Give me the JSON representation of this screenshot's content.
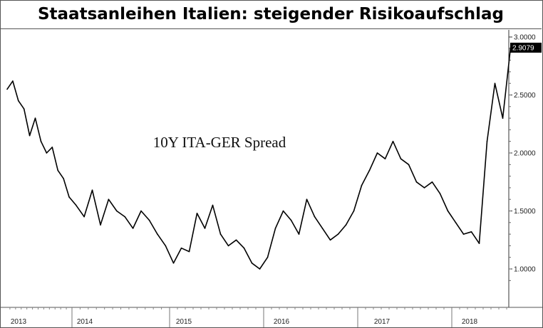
{
  "chart_data": {
    "type": "line",
    "title": "Staatsanleihen Italien: steigender Risikoaufschlag",
    "annotation": "10Y ITA-GER Spread",
    "series": [
      {
        "x": [
          "2013-01",
          "2013-02",
          "2013-03",
          "2013-04",
          "2013-05",
          "2013-06",
          "2013-07",
          "2013-08",
          "2013-09",
          "2013-10",
          "2013-11",
          "2013-12",
          "2014-01",
          "2014-02",
          "2014-03",
          "2014-04",
          "2014-05",
          "2014-06",
          "2014-07",
          "2014-08",
          "2014-09",
          "2014-10",
          "2014-11",
          "2014-12",
          "2015-01",
          "2015-02",
          "2015-03",
          "2015-04",
          "2015-05",
          "2015-06",
          "2015-07",
          "2015-08",
          "2015-09",
          "2015-10",
          "2015-11",
          "2015-12",
          "2016-01",
          "2016-02",
          "2016-03",
          "2016-04",
          "2016-05",
          "2016-06",
          "2016-07",
          "2016-08",
          "2016-09",
          "2016-10",
          "2016-11",
          "2016-12",
          "2017-01",
          "2017-02",
          "2017-03",
          "2017-04",
          "2017-05",
          "2017-06",
          "2017-07",
          "2017-08",
          "2017-09",
          "2017-10",
          "2017-11",
          "2017-12",
          "2018-01",
          "2018-02",
          "2018-03",
          "2018-04",
          "2018-05",
          "2018-06",
          "2018-07",
          "2018-08"
        ],
        "values": [
          2.55,
          2.62,
          2.45,
          2.38,
          2.15,
          2.3,
          2.1,
          2.0,
          2.05,
          1.85,
          1.78,
          1.62,
          1.55,
          1.45,
          1.68,
          1.38,
          1.6,
          1.5,
          1.45,
          1.35,
          1.5,
          1.42,
          1.3,
          1.2,
          1.05,
          1.18,
          1.15,
          1.48,
          1.35,
          1.55,
          1.3,
          1.2,
          1.25,
          1.18,
          1.05,
          1.0,
          1.1,
          1.35,
          1.5,
          1.42,
          1.3,
          1.6,
          1.45,
          1.35,
          1.25,
          1.3,
          1.38,
          1.5,
          1.72,
          1.85,
          2.0,
          1.95,
          2.1,
          1.95,
          1.9,
          1.75,
          1.7,
          1.75,
          1.65,
          1.5,
          1.4,
          1.3,
          1.32,
          1.22,
          2.1,
          2.6,
          2.3,
          2.91
        ]
      }
    ],
    "x_tick_labels": [
      "2013",
      "2014",
      "2015",
      "2016",
      "2017",
      "2018"
    ],
    "y_tick_labels": [
      "1.0000",
      "1.5000",
      "2.0000",
      "2.5000",
      "3.0000"
    ],
    "ylim": [
      0.8,
      3.05
    ],
    "last_value": "2.9079",
    "y_axis_side": "right",
    "grid": false,
    "colors": {
      "line": "#000000",
      "last_value_box": "#000000"
    }
  }
}
